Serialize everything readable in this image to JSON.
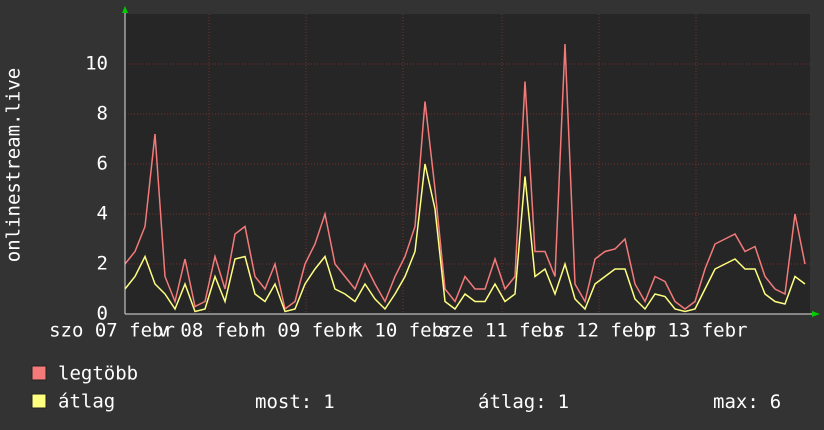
{
  "chart_data": {
    "type": "line",
    "ylabel": "onlinestream.live",
    "xlim": [
      0,
      68.5
    ],
    "xticks": [
      {
        "value": -1.3,
        "label": "szo 07 febr"
      },
      {
        "value": 8.4,
        "label": "v 08 febr"
      },
      {
        "value": 18.1,
        "label": "h 09 febr"
      },
      {
        "value": 27.8,
        "label": "k 10 febr"
      },
      {
        "value": 37.7,
        "label": "sze 11 febr"
      },
      {
        "value": 47.4,
        "label": "cs 12 febr"
      },
      {
        "value": 57.1,
        "label": "p 13 febr"
      }
    ],
    "ylim": [
      0,
      12
    ],
    "yticks": [
      0,
      2,
      4,
      6,
      8,
      10
    ],
    "grid": true,
    "series": [
      {
        "name": "legtöbb",
        "color": "#f47a7a",
        "values": [
          2,
          2.5,
          3.5,
          7.2,
          1.5,
          0.5,
          2.2,
          0.3,
          0.5,
          2.3,
          1,
          3.2,
          3.5,
          1.5,
          1,
          2,
          0.2,
          0.5,
          2,
          2.8,
          4,
          2,
          1.5,
          1,
          2,
          1.2,
          0.5,
          1.5,
          2.3,
          3.5,
          8.5,
          5,
          1,
          0.5,
          1.5,
          1,
          1,
          2.2,
          1,
          1.5,
          9.3,
          2.5,
          2.5,
          1.5,
          10.8,
          1.2,
          0.5,
          2.2,
          2.5,
          2.6,
          3,
          1.2,
          0.5,
          1.5,
          1.3,
          0.5,
          0.2,
          0.5,
          1.8,
          2.8,
          3,
          3.2,
          2.5,
          2.7,
          1.5,
          1,
          0.8,
          4,
          2
        ]
      },
      {
        "name": "átlag",
        "color": "#ffff80",
        "values": [
          1,
          1.5,
          2.3,
          1.2,
          0.8,
          0.2,
          1.2,
          0.1,
          0.2,
          1.5,
          0.5,
          2.2,
          2.3,
          0.8,
          0.5,
          1.2,
          0.1,
          0.2,
          1.2,
          1.8,
          2.3,
          1,
          0.8,
          0.5,
          1.2,
          0.6,
          0.2,
          0.8,
          1.5,
          2.5,
          6,
          4.2,
          0.5,
          0.2,
          0.8,
          0.5,
          0.5,
          1.2,
          0.5,
          0.8,
          5.5,
          1.5,
          1.8,
          0.8,
          2,
          0.6,
          0.2,
          1.2,
          1.5,
          1.8,
          1.8,
          0.6,
          0.2,
          0.8,
          0.7,
          0.2,
          0.1,
          0.2,
          1,
          1.8,
          2,
          2.2,
          1.8,
          1.8,
          0.8,
          0.5,
          0.4,
          1.5,
          1.2
        ]
      }
    ],
    "stats": [
      {
        "label": "most:",
        "value": 1
      },
      {
        "label": "átlag:",
        "value": 1
      },
      {
        "label": "max:",
        "value": 6
      }
    ]
  }
}
